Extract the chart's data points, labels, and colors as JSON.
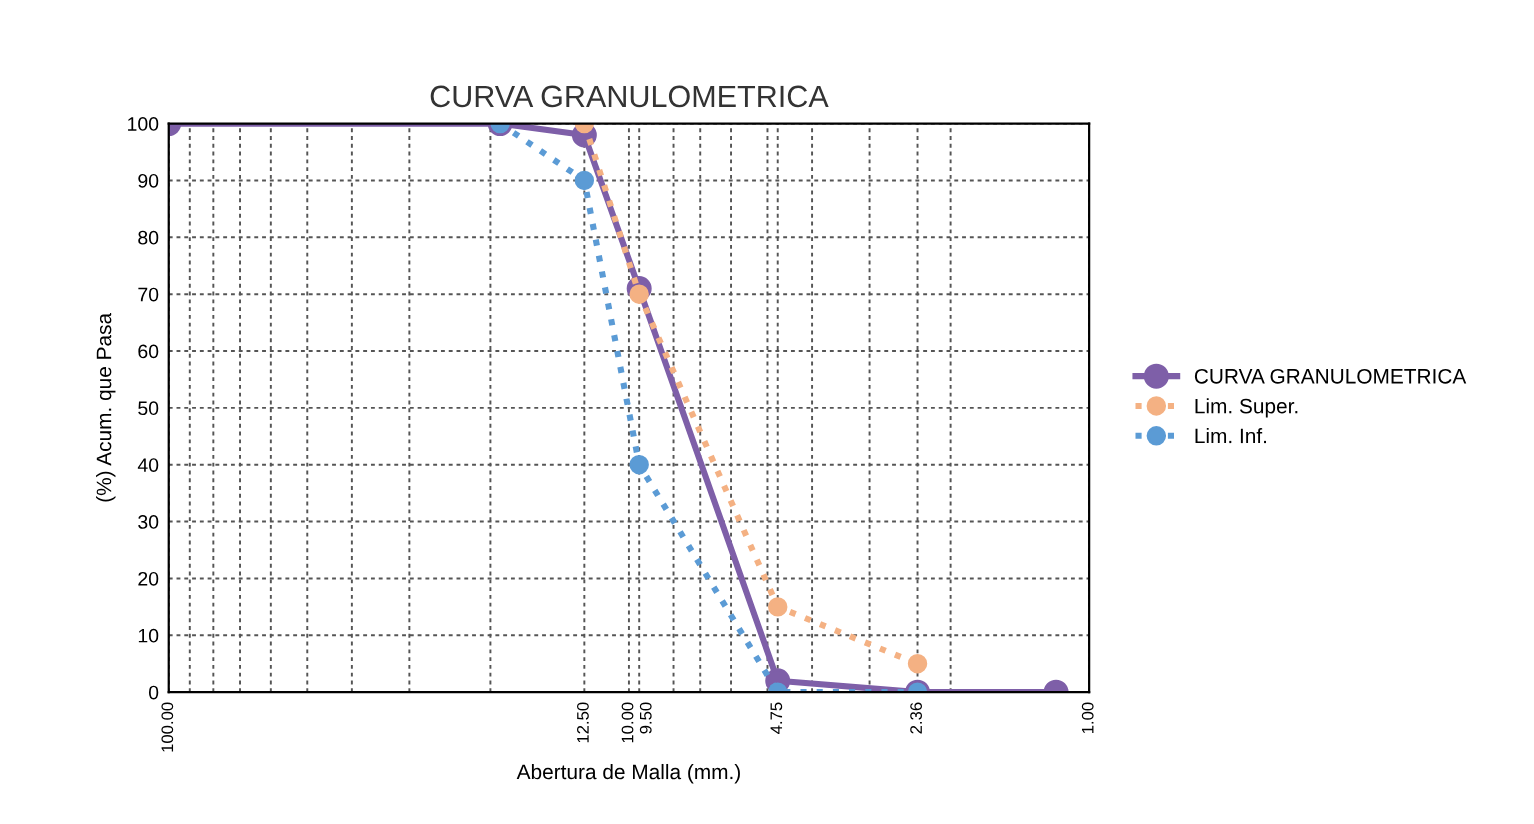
{
  "chart_data": {
    "type": "line",
    "title": "CURVA GRANULOMETRICA",
    "xlabel": "Abertura de Malla (mm.)",
    "ylabel": "(%) Acum. que Pasa",
    "log": "x",
    "xlim": [
      100,
      1
    ],
    "ylim": [
      0,
      100
    ],
    "xticks": [
      {
        "value": 100,
        "label": "100.00"
      },
      {
        "value": 90,
        "label": null
      },
      {
        "value": 80,
        "label": null
      },
      {
        "value": 70,
        "label": null
      },
      {
        "value": 60,
        "label": null
      },
      {
        "value": 50,
        "label": null
      },
      {
        "value": 40,
        "label": null
      },
      {
        "value": 30,
        "label": null
      },
      {
        "value": 20,
        "label": null
      },
      {
        "value": 12.5,
        "label": "12.50"
      },
      {
        "value": 10,
        "label": "10.00"
      },
      {
        "value": 9.5,
        "label": "9.50"
      },
      {
        "value": 8,
        "label": null
      },
      {
        "value": 7,
        "label": null
      },
      {
        "value": 6,
        "label": null
      },
      {
        "value": 5,
        "label": null
      },
      {
        "value": 4.75,
        "label": "4.75"
      },
      {
        "value": 4,
        "label": null
      },
      {
        "value": 3,
        "label": null
      },
      {
        "value": 2,
        "label": null
      },
      {
        "value": 2.36,
        "label": "2.36"
      },
      {
        "value": 1,
        "label": "1.00"
      }
    ],
    "yticks": [
      0,
      10,
      20,
      30,
      40,
      50,
      60,
      70,
      80,
      90,
      100
    ],
    "grid": true,
    "legend": "right",
    "marker": "circle",
    "series": [
      {
        "name": "CURVA GRANULOMETRICA",
        "color": "#7e5fa8",
        "line_style": "solid",
        "x": [
          100,
          19.05,
          12.5,
          9.5,
          4.75,
          2.36,
          1.18
        ],
        "values": [
          100,
          100,
          98,
          71,
          2,
          0,
          0
        ]
      },
      {
        "name": "Lim. Super.",
        "color": "#f4b183",
        "line_style": "dotted",
        "x": [
          12.5,
          9.5,
          4.75,
          2.36
        ],
        "values": [
          100,
          70,
          15,
          5
        ]
      },
      {
        "name": "Lim. Inf.",
        "color": "#5b9bd5",
        "line_style": "dotted",
        "x": [
          19.05,
          12.5,
          9.5,
          4.75,
          2.36
        ],
        "values": [
          100,
          90,
          40,
          0,
          0
        ]
      }
    ]
  }
}
